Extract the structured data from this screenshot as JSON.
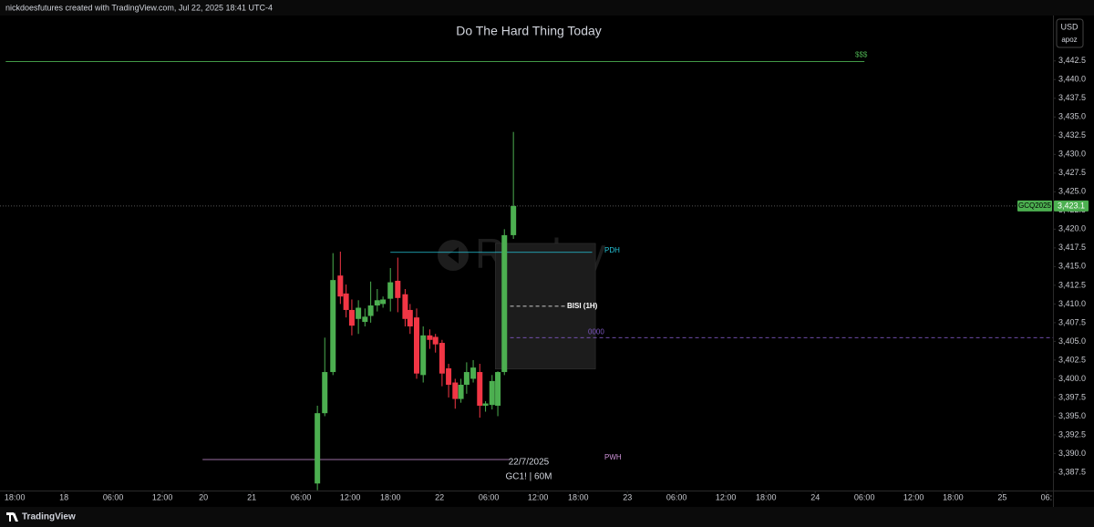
{
  "header": {
    "attribution": "nickdoesfutures created with TradingView.com, Jul 22, 2025 18:41 UTC-4",
    "currency": "USD",
    "unit": "apoz"
  },
  "chart_data": {
    "type": "candlestick",
    "title": "Do The Hard Thing Today",
    "symbol_info": {
      "date": "22/7/2025",
      "symbol": "GC1! | 60M"
    },
    "watermark": "Replay",
    "x": [
      36.9,
      37.8,
      38.8,
      39.7,
      40.4,
      41.1,
      41.9,
      42.7,
      43.4,
      44.2,
      44.9,
      45.8,
      46.7,
      47.6,
      48.2,
      49.0,
      49.8,
      50.6,
      51.3,
      52.1,
      52.9,
      53.7,
      54.4,
      55.1,
      55.9,
      56.7,
      57.4,
      58.2,
      58.9,
      59.7,
      60.8
    ],
    "open": [
      3386.0,
      3395.4,
      3400.9,
      3413.8,
      3411.4,
      3409.2,
      3408.0,
      3407.6,
      3408.4,
      3409.8,
      3410.0,
      3410.7,
      3413.1,
      3411.3,
      3409.2,
      3408.2,
      3400.5,
      3405.8,
      3405.6,
      3404.8,
      3401.4,
      3399.5,
      3397.3,
      3399.2,
      3400.0,
      3400.9,
      3396.4,
      3396.5,
      3396.4,
      3400.9,
      3419.2
    ],
    "high": [
      3396.4,
      3405.5,
      3416.8,
      3417.0,
      3412.6,
      3410.6,
      3410.5,
      3409.4,
      3413.0,
      3412.0,
      3411.0,
      3414.8,
      3416.2,
      3412.0,
      3410.0,
      3409.4,
      3407.0,
      3406.6,
      3406.0,
      3405.2,
      3402.0,
      3400.0,
      3400.0,
      3402.2,
      3402.5,
      3402.0,
      3397.0,
      3400.5,
      3401.0,
      3420.0,
      3433.0
    ],
    "low": [
      3385.1,
      3395.0,
      3400.5,
      3410.0,
      3408.2,
      3405.8,
      3406.0,
      3407.0,
      3407.5,
      3409.0,
      3409.5,
      3409.0,
      3408.9,
      3407.0,
      3406.0,
      3400.0,
      3399.5,
      3404.0,
      3403.5,
      3399.0,
      3397.5,
      3396.0,
      3396.8,
      3398.0,
      3399.5,
      3394.8,
      3395.6,
      3395.9,
      3395.0,
      3400.5,
      3418.7
    ],
    "close": [
      3395.4,
      3400.9,
      3413.2,
      3411.0,
      3409.2,
      3407.1,
      3409.5,
      3408.3,
      3409.8,
      3410.5,
      3410.6,
      3412.9,
      3410.8,
      3408.0,
      3407.0,
      3400.7,
      3405.8,
      3405.2,
      3404.6,
      3400.7,
      3399.2,
      3397.3,
      3399.2,
      3400.9,
      3401.5,
      3396.4,
      3396.7,
      3399.7,
      3400.9,
      3419.2,
      3423.1
    ],
    "up_color": "#4caf50",
    "down_color": "#f23645",
    "xlim": [
      -1.8,
      126.7
    ],
    "xticks": [
      {
        "value": 0,
        "label": "18:00"
      },
      {
        "value": 6,
        "label": "18"
      },
      {
        "value": 12,
        "label": "06:00"
      },
      {
        "value": 18,
        "label": "12:00"
      },
      {
        "value": 23,
        "label": "20"
      },
      {
        "value": 28.9,
        "label": "21"
      },
      {
        "value": 34.9,
        "label": "06:00"
      },
      {
        "value": 40.9,
        "label": "12:00"
      },
      {
        "value": 45.8,
        "label": "18:00"
      },
      {
        "value": 51.8,
        "label": "22"
      },
      {
        "value": 57.8,
        "label": "06:00"
      },
      {
        "value": 63.8,
        "label": "12:00"
      },
      {
        "value": 68.7,
        "label": "18:00"
      },
      {
        "value": 74.7,
        "label": "23"
      },
      {
        "value": 80.7,
        "label": "06:00"
      },
      {
        "value": 86.7,
        "label": "12:00"
      },
      {
        "value": 91.6,
        "label": "18:00"
      },
      {
        "value": 97.6,
        "label": "24"
      },
      {
        "value": 103.6,
        "label": "06:00"
      },
      {
        "value": 109.6,
        "label": "12:00"
      },
      {
        "value": 114.4,
        "label": "18:00"
      },
      {
        "value": 120.4,
        "label": "25"
      },
      {
        "value": 125.8,
        "label": "06:"
      }
    ],
    "ylim": [
      3385.06,
      3448.2
    ],
    "yticks": [
      {
        "value": 3387.5,
        "label": "3,387.5"
      },
      {
        "value": 3390,
        "label": "3,390.0"
      },
      {
        "value": 3392.5,
        "label": "3,392.5"
      },
      {
        "value": 3395,
        "label": "3,395.0"
      },
      {
        "value": 3397.5,
        "label": "3,397.5"
      },
      {
        "value": 3400,
        "label": "3,400.0"
      },
      {
        "value": 3402.5,
        "label": "3,402.5"
      },
      {
        "value": 3405,
        "label": "3,405.0"
      },
      {
        "value": 3407.5,
        "label": "3,407.5"
      },
      {
        "value": 3410,
        "label": "3,410.0"
      },
      {
        "value": 3412.5,
        "label": "3,412.5"
      },
      {
        "value": 3415,
        "label": "3,415.0"
      },
      {
        "value": 3417.5,
        "label": "3,417.5"
      },
      {
        "value": 3420,
        "label": "3,420.0"
      },
      {
        "value": 3422.5,
        "label": "3,422.5"
      },
      {
        "value": 3425,
        "label": "3,425.0"
      },
      {
        "value": 3427.5,
        "label": "3,427.5"
      },
      {
        "value": 3430,
        "label": "3,430.0"
      },
      {
        "value": 3432.5,
        "label": "3,432.5"
      },
      {
        "value": 3435,
        "label": "3,435.0"
      },
      {
        "value": 3437.5,
        "label": "3,437.5"
      },
      {
        "value": 3440,
        "label": "3,440.0"
      },
      {
        "value": 3442.5,
        "label": "3,442.5"
      }
    ],
    "grid": false,
    "last_price": {
      "symbol": "GCQ2025",
      "value": 3423.1,
      "label": "3,423.1",
      "color": "#4caf50"
    },
    "zones": [
      {
        "low": 3401.3,
        "high": 3418.1,
        "x": [
          58.6,
          70.8
        ],
        "color": "#1c1c1c"
      }
    ],
    "levels": [
      {
        "name": "$$$",
        "value": 3442.4,
        "x": [
          -1.1,
          103.6
        ],
        "color": "#4caf50",
        "style": "solid"
      },
      {
        "name": "PDH",
        "value": 3416.9,
        "x": [
          45.8,
          70.4
        ],
        "color": "#26c6da",
        "style": "solid"
      },
      {
        "name": "BISI (1H)",
        "value": 3409.7,
        "x": [
          60.4,
          67.1
        ],
        "color": "#ffffff",
        "style": "dashed"
      },
      {
        "name": "0000",
        "value": 3405.5,
        "x": [
          60.4,
          126.6
        ],
        "color": "#7e57c2",
        "style": "dashed"
      },
      {
        "name": "PWH",
        "value": 3389.2,
        "x": [
          22.9,
          60.4
        ],
        "color": "#ce93d8",
        "style": "solid"
      }
    ]
  },
  "footer": {
    "brand": "TradingView"
  }
}
